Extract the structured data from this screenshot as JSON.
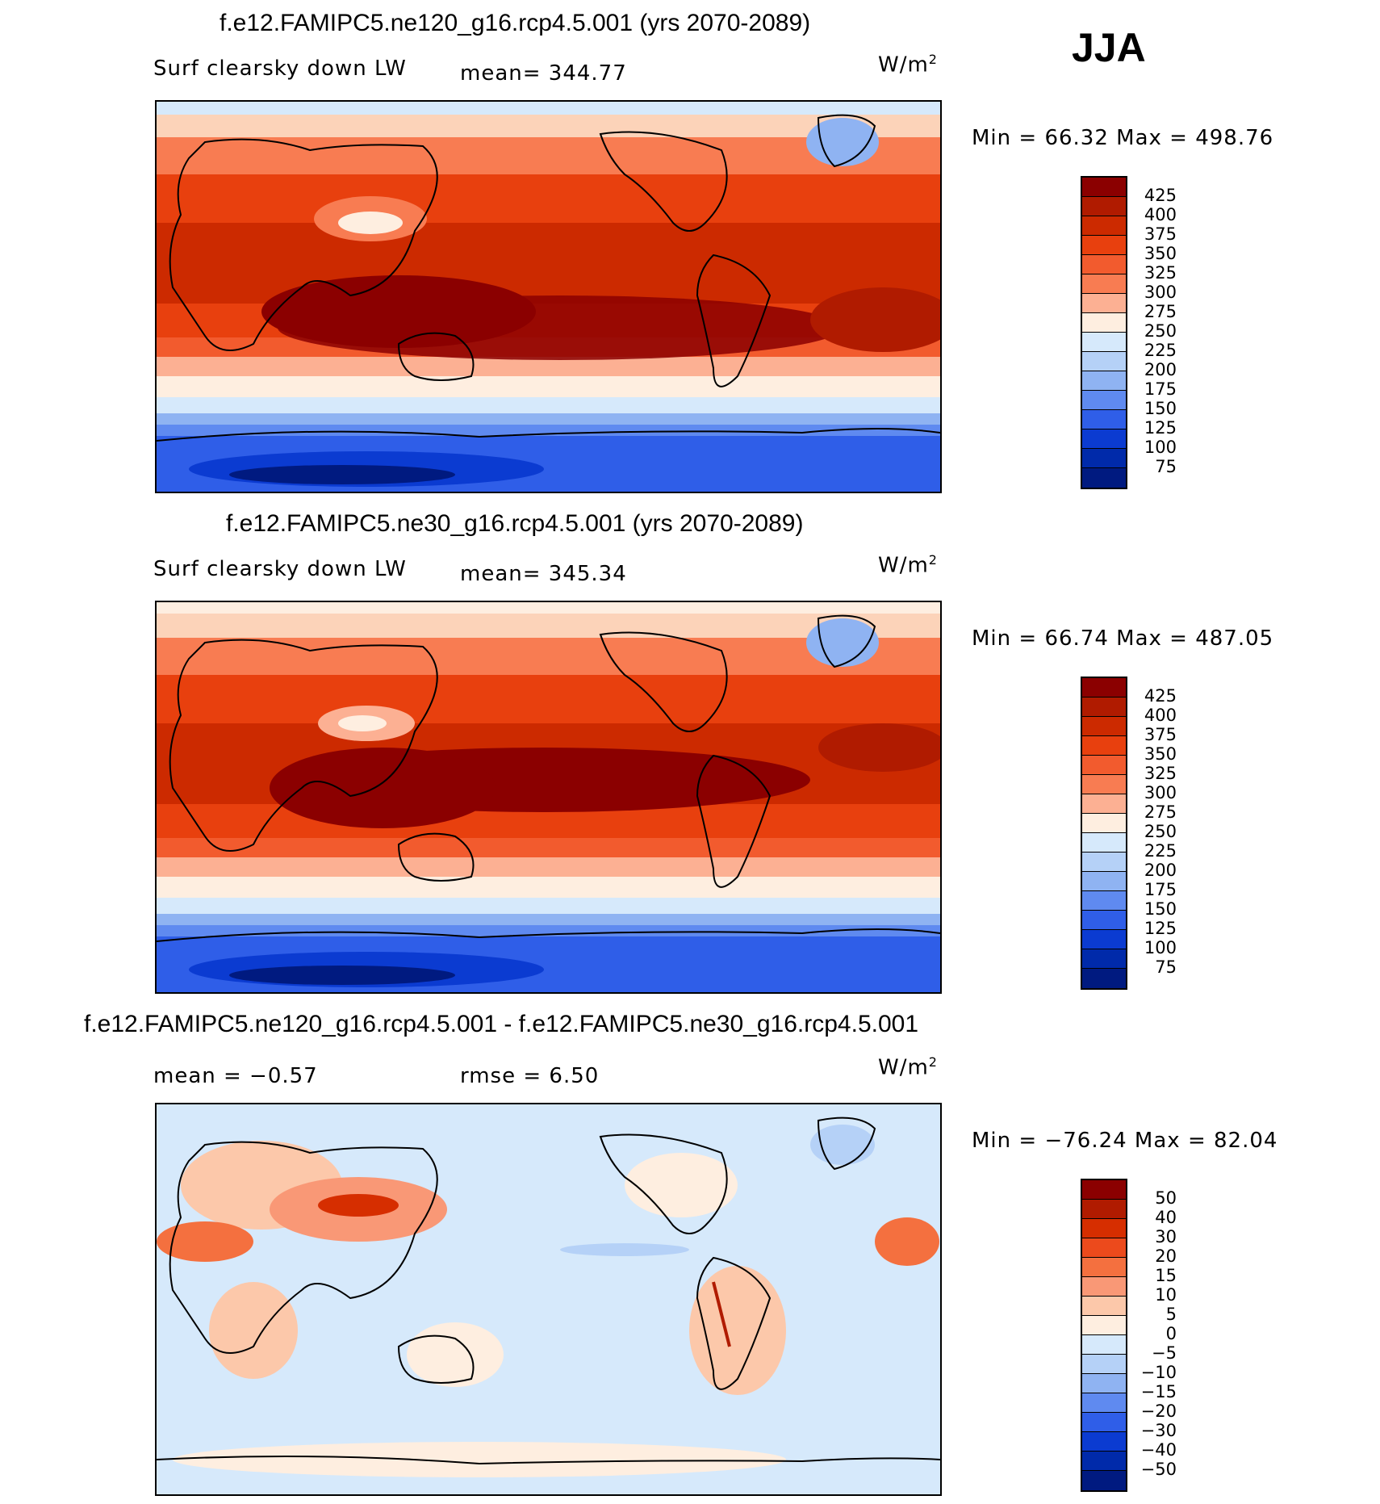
{
  "season": "JJA",
  "panels": [
    {
      "title": "f.e12.FAMIPC5.ne120_g16.rcp4.5.001 (yrs 2070-2089)",
      "variable": "Surf clearsky down LW",
      "stat": "mean= 344.77",
      "units": "W/m",
      "units_exp": "2",
      "minmax": "Min =   66.32 Max =  498.76",
      "colorbar": {
        "labels": [
          "425",
          "400",
          "375",
          "350",
          "325",
          "300",
          "275",
          "250",
          "225",
          "200",
          "175",
          "150",
          "125",
          "100",
          "75"
        ],
        "colors": [
          "#8b0000",
          "#b01b00",
          "#cc2a00",
          "#e8400e",
          "#f25b2e",
          "#f87c52",
          "#fcb093",
          "#feeee0",
          "#d6e9fb",
          "#b5d1f7",
          "#8fb3f2",
          "#5f8af0",
          "#2f5ee8",
          "#0b3bd1",
          "#002aaa",
          "#001a80"
        ]
      }
    },
    {
      "title": "f.e12.FAMIPC5.ne30_g16.rcp4.5.001 (yrs 2070-2089)",
      "variable": "Surf clearsky down LW",
      "stat": "mean= 345.34",
      "units": "W/m",
      "units_exp": "2",
      "minmax": "Min =   66.74 Max =  487.05",
      "colorbar": {
        "labels": [
          "425",
          "400",
          "375",
          "350",
          "325",
          "300",
          "275",
          "250",
          "225",
          "200",
          "175",
          "150",
          "125",
          "100",
          "75"
        ],
        "colors": [
          "#8b0000",
          "#b01b00",
          "#cc2a00",
          "#e8400e",
          "#f25b2e",
          "#f87c52",
          "#fcb093",
          "#feeee0",
          "#d6e9fb",
          "#b5d1f7",
          "#8fb3f2",
          "#5f8af0",
          "#2f5ee8",
          "#0b3bd1",
          "#002aaa",
          "#001a80"
        ]
      }
    },
    {
      "title": "f.e12.FAMIPC5.ne120_g16.rcp4.5.001 - f.e12.FAMIPC5.ne30_g16.rcp4.5.001",
      "stat_mean": "mean =   −0.57",
      "stat_rmse": "rmse =    6.50",
      "units": "W/m",
      "units_exp": "2",
      "minmax": "Min = −76.24 Max =   82.04",
      "colorbar": {
        "labels": [
          "50",
          "40",
          "30",
          "20",
          "15",
          "10",
          "5",
          "0",
          "−5",
          "−10",
          "−15",
          "−20",
          "−30",
          "−40",
          "−50"
        ],
        "colors": [
          "#8b0000",
          "#b01b00",
          "#d62e00",
          "#ec4a1c",
          "#f4703f",
          "#f99876",
          "#fcc8aa",
          "#feeee0",
          "#d6e9fb",
          "#b5d1f7",
          "#8fb3f2",
          "#5f8af0",
          "#2f5ee8",
          "#0b3bd1",
          "#002aaa",
          "#001a80"
        ]
      }
    }
  ]
}
